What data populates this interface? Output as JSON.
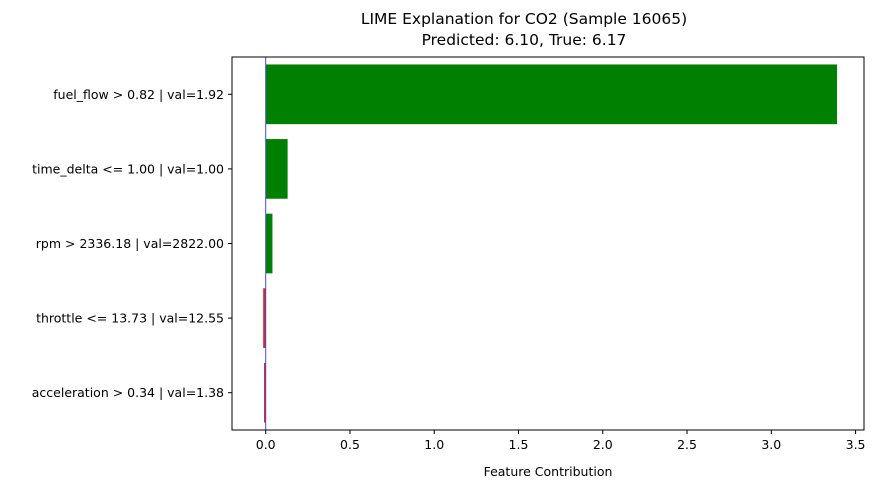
{
  "chart_data": {
    "type": "bar",
    "orientation": "horizontal",
    "title": "LIME Explanation for CO2 (Sample 16065)",
    "subtitle": "Predicted: 6.10, True: 6.17",
    "xlabel": "Feature Contribution",
    "ylabel": "",
    "categories": [
      "fuel_flow > 0.82 | val=1.92",
      "time_delta <= 1.00 | val=1.00",
      "rpm > 2336.18 | val=2822.00",
      "throttle <= 13.73 | val=12.55",
      "acceleration > 0.34 | val=1.38"
    ],
    "values": [
      3.39,
      0.13,
      0.04,
      -0.015,
      -0.01
    ],
    "xlim": [
      -0.2,
      3.55
    ],
    "xticks": [
      0.0,
      0.5,
      1.0,
      1.5,
      2.0,
      2.5,
      3.0,
      3.5
    ],
    "xtick_labels": [
      "0.0",
      "0.5",
      "1.0",
      "1.5",
      "2.0",
      "2.5",
      "3.0",
      "3.5"
    ],
    "grid": false,
    "colors": {
      "positive": "#008000",
      "negative": "#d62728",
      "zero_line": "#4a4ad0"
    }
  }
}
